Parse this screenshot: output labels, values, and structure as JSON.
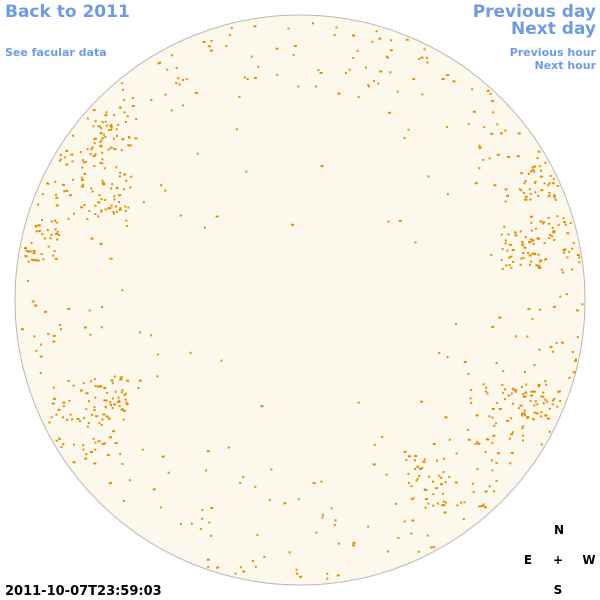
{
  "header": {
    "back": "Back to 2011",
    "facular": "See facular data",
    "previous_day": "Previous day",
    "next_day": "Next day",
    "previous_hour": "Previous hour",
    "next_hour": "Next hour"
  },
  "timestamp": "2011-10-07T23:59:03",
  "compass": {
    "north": "N",
    "east": "E",
    "center": "+",
    "west": "W",
    "south": "S"
  }
}
